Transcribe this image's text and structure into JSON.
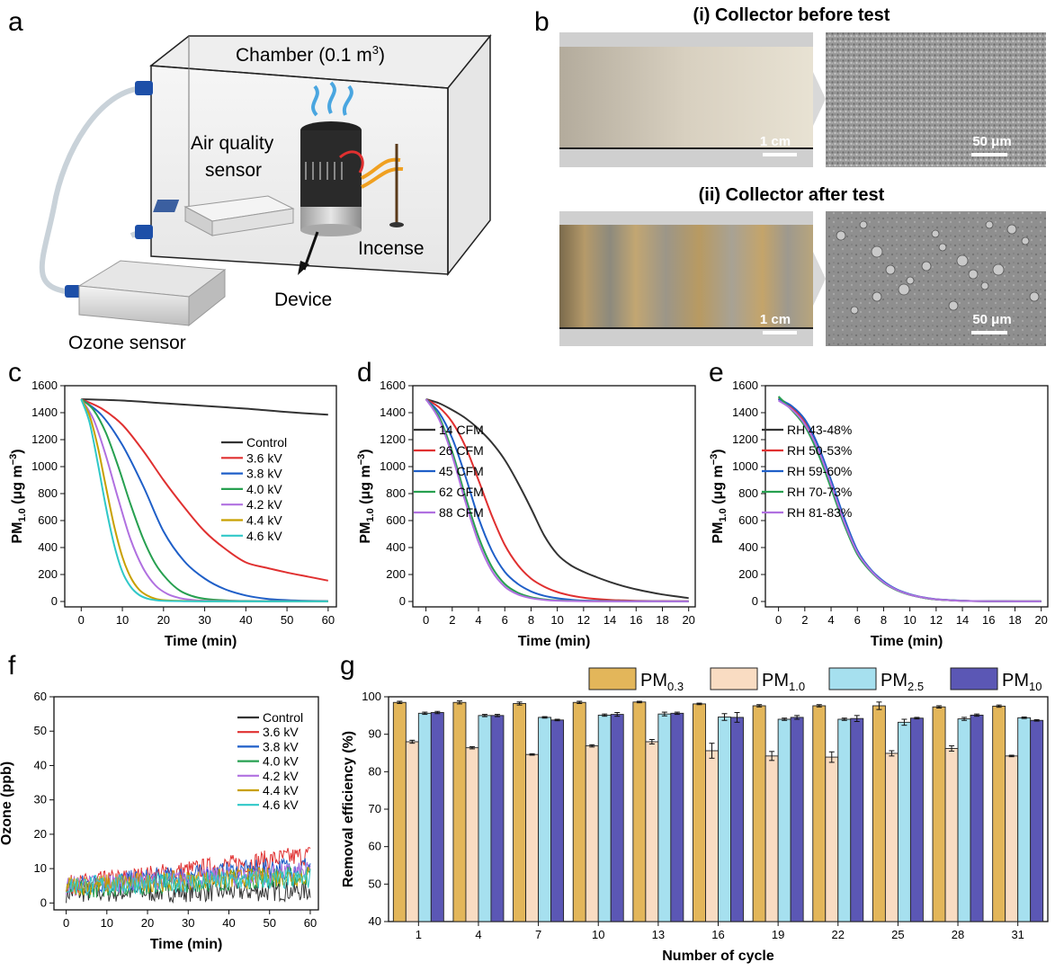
{
  "panel_labels": [
    "a",
    "b",
    "c",
    "d",
    "e",
    "f",
    "g"
  ],
  "panel_a": {
    "chamber_label": "Chamber (0.1 m",
    "chamber_sup": "3",
    "chamber_close": ")",
    "air_sensor_line1": "Air quality",
    "air_sensor_line2": "sensor",
    "incense": "Incense",
    "device": "Device",
    "ozone_sensor": "Ozone sensor"
  },
  "panel_b": {
    "title_before": "(i) Collector before test",
    "title_after": "(ii) Collector after test",
    "scale_cm": "1 cm",
    "scale_um": "50 μm"
  },
  "colors": {
    "control": "#333333",
    "kv36": "#e03030",
    "kv38": "#1f5fc8",
    "kv40": "#27a050",
    "kv42": "#b070e0",
    "kv44": "#c8a000",
    "kv46": "#30c8c8",
    "pm03": "#e3b65a",
    "pm10": "#f9dcc2",
    "pm25": "#a6e0ef",
    "pm10b": "#5b57b5"
  },
  "chart_data": [
    {
      "panel": "c",
      "type": "line",
      "xlabel": "Time (min)",
      "ylabel": "PM",
      "ylabel_sub": "1.0",
      "ylabel_unit": " (μg m",
      "ylabel_sup": "−3",
      "ylabel_close": ")",
      "xlim": [
        -4,
        62
      ],
      "ylim": [
        -40,
        1600
      ],
      "xticks": [
        0,
        10,
        20,
        30,
        40,
        50,
        60
      ],
      "yticks": [
        0,
        200,
        400,
        600,
        800,
        1000,
        1200,
        1400,
        1600
      ],
      "series": [
        {
          "name": "Control",
          "color": "#333333",
          "x": [
            0,
            10,
            20,
            30,
            40,
            50,
            60
          ],
          "y": [
            1500,
            1490,
            1470,
            1450,
            1430,
            1405,
            1385
          ]
        },
        {
          "name": "3.6 kV",
          "color": "#e03030",
          "x": [
            0,
            5,
            10,
            15,
            20,
            25,
            30,
            35,
            40,
            45,
            50,
            55,
            60
          ],
          "y": [
            1500,
            1430,
            1310,
            1120,
            900,
            700,
            520,
            390,
            290,
            250,
            215,
            185,
            155
          ]
        },
        {
          "name": "3.8 kV",
          "color": "#1f5fc8",
          "x": [
            0,
            5,
            10,
            15,
            20,
            25,
            30,
            35,
            40,
            45,
            50,
            55,
            60
          ],
          "y": [
            1500,
            1380,
            1160,
            860,
            520,
            300,
            170,
            90,
            45,
            20,
            10,
            5,
            3
          ]
        },
        {
          "name": "4.0 kV",
          "color": "#27a050",
          "x": [
            0,
            3,
            6,
            9,
            12,
            15,
            18,
            21,
            24,
            27,
            30,
            35,
            40,
            50,
            60
          ],
          "y": [
            1500,
            1420,
            1250,
            1000,
            720,
            470,
            280,
            160,
            80,
            40,
            20,
            8,
            4,
            2,
            1
          ]
        },
        {
          "name": "4.2 kV",
          "color": "#b070e0",
          "x": [
            0,
            3,
            6,
            9,
            12,
            15,
            18,
            21,
            24,
            27,
            30,
            40,
            50,
            60
          ],
          "y": [
            1500,
            1350,
            1080,
            760,
            460,
            250,
            120,
            55,
            25,
            12,
            6,
            2,
            1,
            1
          ]
        },
        {
          "name": "4.4 kV",
          "color": "#c8a000",
          "x": [
            0,
            2,
            4,
            6,
            8,
            10,
            12,
            14,
            16,
            18,
            20,
            25,
            30,
            40,
            60
          ],
          "y": [
            1500,
            1380,
            1150,
            850,
            560,
            330,
            180,
            90,
            45,
            20,
            10,
            4,
            2,
            1,
            1
          ]
        },
        {
          "name": "4.6 kV",
          "color": "#30c8c8",
          "x": [
            0,
            2,
            4,
            6,
            8,
            10,
            12,
            14,
            16,
            18,
            20,
            25,
            30,
            40,
            60
          ],
          "y": [
            1500,
            1330,
            1030,
            700,
            420,
            220,
            110,
            50,
            22,
            10,
            5,
            2,
            1,
            1,
            1
          ]
        }
      ]
    },
    {
      "panel": "d",
      "type": "line",
      "xlabel": "Time (min)",
      "ylabel": "PM",
      "ylabel_sub": "1.0",
      "ylabel_unit": " (μg m",
      "ylabel_sup": "−3",
      "ylabel_close": ")",
      "xlim": [
        -1,
        20.5
      ],
      "ylim": [
        -40,
        1600
      ],
      "xticks": [
        0,
        2,
        4,
        6,
        8,
        10,
        12,
        14,
        16,
        18,
        20
      ],
      "yticks": [
        0,
        200,
        400,
        600,
        800,
        1000,
        1200,
        1400,
        1600
      ],
      "series": [
        {
          "name": "14 CFM",
          "color": "#333333",
          "x": [
            0,
            1,
            2,
            3,
            4,
            5,
            6,
            7,
            8,
            9,
            10,
            11,
            12,
            13,
            14,
            15,
            16,
            17,
            18,
            19,
            20
          ],
          "y": [
            1500,
            1470,
            1420,
            1360,
            1280,
            1180,
            1050,
            880,
            690,
            490,
            350,
            270,
            220,
            180,
            145,
            115,
            90,
            70,
            52,
            38,
            25
          ]
        },
        {
          "name": "26 CFM",
          "color": "#e03030",
          "x": [
            0,
            1,
            2,
            3,
            4,
            5,
            6,
            7,
            8,
            9,
            10,
            11,
            12,
            13,
            14,
            15,
            16,
            18,
            20
          ],
          "y": [
            1500,
            1440,
            1330,
            1150,
            900,
            640,
            420,
            270,
            170,
            110,
            70,
            45,
            28,
            18,
            12,
            8,
            5,
            3,
            2
          ]
        },
        {
          "name": "45 CFM",
          "color": "#1f5fc8",
          "x": [
            0,
            1,
            2,
            3,
            4,
            5,
            6,
            7,
            8,
            9,
            10,
            11,
            12,
            14,
            16,
            18,
            20
          ],
          "y": [
            1500,
            1400,
            1210,
            930,
            620,
            380,
            220,
            130,
            75,
            42,
            24,
            13,
            7,
            3,
            2,
            1,
            1
          ]
        },
        {
          "name": "62 CFM",
          "color": "#27a050",
          "x": [
            0,
            1,
            2,
            3,
            4,
            5,
            6,
            7,
            8,
            9,
            10,
            12,
            14,
            16,
            18,
            20
          ],
          "y": [
            1500,
            1370,
            1110,
            780,
            480,
            260,
            130,
            65,
            32,
            16,
            8,
            3,
            2,
            1,
            1,
            1
          ]
        },
        {
          "name": "88 CFM",
          "color": "#b070e0",
          "x": [
            0,
            1,
            2,
            3,
            4,
            5,
            6,
            7,
            8,
            9,
            10,
            12,
            14,
            16,
            18,
            20
          ],
          "y": [
            1500,
            1350,
            1080,
            740,
            440,
            230,
            110,
            52,
            25,
            12,
            6,
            2,
            1,
            1,
            1,
            1
          ]
        }
      ]
    },
    {
      "panel": "e",
      "type": "line",
      "xlabel": "Time (min)",
      "ylabel": "PM",
      "ylabel_sub": "1.0",
      "ylabel_unit": " (μg m",
      "ylabel_sup": "−3",
      "ylabel_close": ")",
      "xlim": [
        -1,
        20.5
      ],
      "ylim": [
        -40,
        1600
      ],
      "xticks": [
        0,
        2,
        4,
        6,
        8,
        10,
        12,
        14,
        16,
        18,
        20
      ],
      "yticks": [
        0,
        200,
        400,
        600,
        800,
        1000,
        1200,
        1400,
        1600
      ],
      "series": [
        {
          "name": "RH 43-48%",
          "color": "#333333",
          "x": [
            0,
            1,
            2,
            3,
            4,
            5,
            6,
            7,
            8,
            9,
            10,
            11,
            12,
            14,
            16,
            18,
            20
          ],
          "y": [
            1500,
            1430,
            1320,
            1120,
            860,
            580,
            360,
            230,
            140,
            85,
            50,
            28,
            15,
            5,
            2,
            1,
            1
          ]
        },
        {
          "name": "RH 50-53%",
          "color": "#e03030",
          "x": [
            0,
            1,
            2,
            3,
            4,
            5,
            6,
            7,
            8,
            9,
            10,
            11,
            12,
            14,
            16,
            18,
            20
          ],
          "y": [
            1510,
            1440,
            1330,
            1140,
            880,
            600,
            370,
            235,
            145,
            88,
            52,
            30,
            16,
            5,
            2,
            1,
            1
          ]
        },
        {
          "name": "RH 59-60%",
          "color": "#1f5fc8",
          "x": [
            0,
            1,
            2,
            3,
            4,
            5,
            6,
            7,
            8,
            9,
            10,
            11,
            12,
            14,
            16,
            18,
            20
          ],
          "y": [
            1500,
            1450,
            1350,
            1160,
            900,
            620,
            380,
            240,
            150,
            90,
            54,
            31,
            17,
            6,
            2,
            1,
            1
          ]
        },
        {
          "name": "RH 70-73%",
          "color": "#27a050",
          "x": [
            0,
            1,
            2,
            3,
            4,
            5,
            6,
            7,
            8,
            9,
            10,
            11,
            12,
            14,
            16,
            18,
            20
          ],
          "y": [
            1520,
            1420,
            1300,
            1100,
            840,
            570,
            350,
            225,
            138,
            83,
            49,
            28,
            15,
            5,
            2,
            1,
            1
          ]
        },
        {
          "name": "RH 81-83%",
          "color": "#b070e0",
          "x": [
            0,
            1,
            2,
            3,
            4,
            5,
            6,
            7,
            8,
            9,
            10,
            11,
            12,
            14,
            16,
            18,
            20
          ],
          "y": [
            1490,
            1425,
            1315,
            1130,
            870,
            590,
            365,
            232,
            142,
            86,
            51,
            29,
            16,
            5,
            2,
            1,
            1
          ]
        }
      ]
    },
    {
      "panel": "f",
      "type": "line",
      "xlabel": "Time (min)",
      "ylabel": "Ozone (ppb)",
      "xlim": [
        -3,
        62
      ],
      "ylim": [
        -2,
        60
      ],
      "xticks": [
        0,
        10,
        20,
        30,
        40,
        50,
        60
      ],
      "yticks": [
        0,
        10,
        20,
        30,
        40,
        50,
        60
      ],
      "series": [
        {
          "name": "Control",
          "color": "#333333",
          "x": [
            0,
            60
          ],
          "y": [
            3,
            3.5
          ]
        },
        {
          "name": "3.6 kV",
          "color": "#e03030",
          "x": [
            0,
            60
          ],
          "y": [
            5,
            14
          ]
        },
        {
          "name": "3.8 kV",
          "color": "#1f5fc8",
          "x": [
            0,
            60
          ],
          "y": [
            5,
            11
          ]
        },
        {
          "name": "4.0 kV",
          "color": "#27a050",
          "x": [
            0,
            60
          ],
          "y": [
            4,
            8
          ]
        },
        {
          "name": "4.2 kV",
          "color": "#b070e0",
          "x": [
            0,
            60
          ],
          "y": [
            5,
            9
          ]
        },
        {
          "name": "4.4 kV",
          "color": "#c8a000",
          "x": [
            0,
            60
          ],
          "y": [
            5,
            8
          ]
        },
        {
          "name": "4.6 kV",
          "color": "#30c8c8",
          "x": [
            0,
            60
          ],
          "y": [
            5,
            7
          ]
        }
      ]
    },
    {
      "panel": "g",
      "type": "bar",
      "xlabel": "Number of cycle",
      "ylabel": "Removal efficiency (%)",
      "ylim": [
        40,
        100
      ],
      "yticks": [
        40,
        50,
        60,
        70,
        80,
        90,
        100
      ],
      "categories": [
        "1",
        "4",
        "7",
        "10",
        "13",
        "16",
        "19",
        "22",
        "25",
        "28",
        "31"
      ],
      "series": [
        {
          "name": "PM",
          "sub": "0.3",
          "color": "#e3b65a",
          "values": [
            98.5,
            98.5,
            98.2,
            98.5,
            98.6,
            98.1,
            97.6,
            97.6,
            97.6,
            97.3,
            97.5
          ],
          "err": [
            0.3,
            0.4,
            0.4,
            0.3,
            0.2,
            0.2,
            0.3,
            0.3,
            1.0,
            0.3,
            0.3
          ]
        },
        {
          "name": "PM",
          "sub": "1.0",
          "color": "#f9dcc2",
          "values": [
            88.0,
            86.4,
            84.6,
            86.9,
            88.0,
            85.6,
            84.2,
            83.9,
            84.9,
            86.2,
            84.2
          ],
          "err": [
            0.4,
            0.3,
            0.2,
            0.3,
            0.6,
            2.0,
            1.2,
            1.4,
            0.7,
            0.7,
            0.2
          ]
        },
        {
          "name": "PM",
          "sub": "2.5",
          "color": "#a6e0ef",
          "values": [
            95.6,
            95.0,
            94.5,
            95.1,
            95.4,
            94.6,
            94.0,
            94.0,
            93.2,
            94.1,
            94.4
          ],
          "err": [
            0.3,
            0.3,
            0.2,
            0.3,
            0.5,
            0.9,
            0.3,
            0.3,
            0.8,
            0.4,
            0.2
          ]
        },
        {
          "name": "PM",
          "sub": "10",
          "color": "#5b57b5",
          "values": [
            95.8,
            95.0,
            93.8,
            95.3,
            95.6,
            94.5,
            94.5,
            94.2,
            94.3,
            95.1,
            93.7
          ],
          "err": [
            0.3,
            0.3,
            0.2,
            0.5,
            0.3,
            1.3,
            0.5,
            0.8,
            0.2,
            0.3,
            0.2
          ]
        }
      ]
    }
  ]
}
